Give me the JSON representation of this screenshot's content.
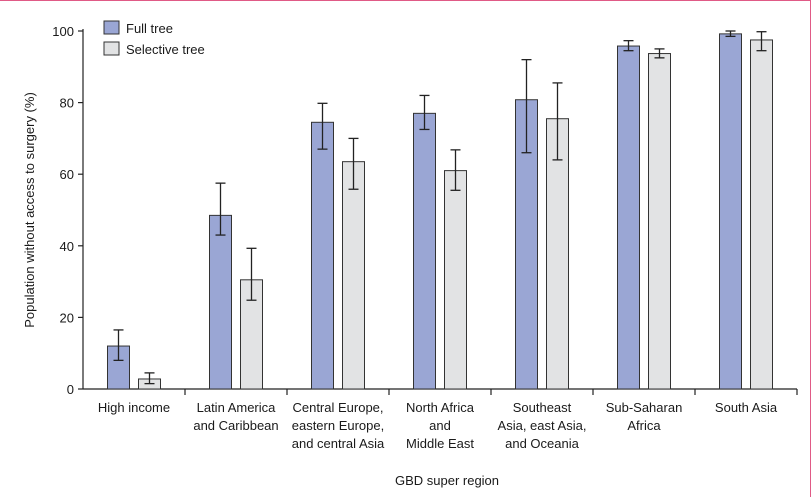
{
  "chart_data": {
    "type": "bar",
    "title": "",
    "xlabel": "GBD super region",
    "ylabel": "Population without access to surgery (%)",
    "ylim": [
      0,
      100
    ],
    "yticks": [
      0,
      20,
      40,
      60,
      80,
      100
    ],
    "grid": false,
    "legend_position": "top-left",
    "categories": [
      [
        "High income"
      ],
      [
        "Latin America",
        "and Caribbean"
      ],
      [
        "Central Europe,",
        "eastern Europe,",
        "and central Asia"
      ],
      [
        "North Africa",
        "and",
        "Middle East"
      ],
      [
        "Southeast",
        "Asia, east Asia,",
        "and Oceania"
      ],
      [
        "Sub-Saharan",
        "Africa"
      ],
      [
        "South Asia"
      ]
    ],
    "series": [
      {
        "name": "Full tree",
        "color": "#9aa6d4",
        "values": [
          12,
          48.5,
          74.5,
          77,
          80.8,
          95.8,
          99.2
        ],
        "error_low": [
          8,
          43,
          67,
          72.5,
          66,
          94.5,
          98.5
        ],
        "error_high": [
          16.5,
          57.5,
          79.8,
          82,
          92,
          97.3,
          100
        ]
      },
      {
        "name": "Selective tree",
        "color": "#e2e3e4",
        "values": [
          2.8,
          30.5,
          63.5,
          61,
          75.5,
          93.7,
          97.5
        ],
        "error_low": [
          1.5,
          24.8,
          55.8,
          55.5,
          64,
          92.5,
          94.5
        ],
        "error_high": [
          4.5,
          39.3,
          70,
          66.8,
          85.5,
          95,
          99.8
        ]
      }
    ]
  }
}
